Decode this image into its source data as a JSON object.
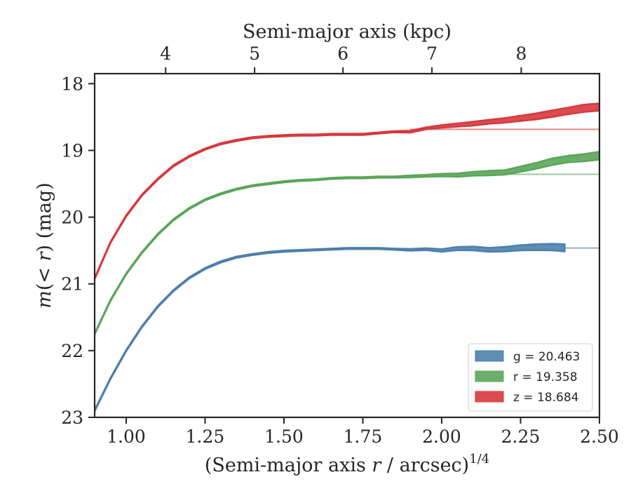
{
  "chart_data": {
    "type": "line",
    "title": "",
    "xlabel_main": "(Semi-major axis ",
    "xlabel_var": "r",
    "xlabel_tail": " / arcsec)",
    "xlabel_exp": "1/4",
    "ylabel_italic_m": "m",
    "ylabel_mid": "(< ",
    "ylabel_italic_r": "r",
    "ylabel_tail": ") (mag)",
    "top_xlabel": "Semi-major axis (kpc)",
    "xlim": [
      0.9,
      2.5
    ],
    "ylim": [
      23.0,
      17.85
    ],
    "y_inverted": true,
    "grid": false,
    "legend_position": "lower-right",
    "x_ticks": [
      {
        "value": 1.0,
        "label": "1.00"
      },
      {
        "value": 1.25,
        "label": "1.25"
      },
      {
        "value": 1.5,
        "label": "1.50"
      },
      {
        "value": 1.75,
        "label": "1.75"
      },
      {
        "value": 2.0,
        "label": "2.00"
      },
      {
        "value": 2.25,
        "label": "2.25"
      },
      {
        "value": 2.5,
        "label": "2.50"
      }
    ],
    "y_ticks": [
      {
        "value": 18,
        "label": "18"
      },
      {
        "value": 19,
        "label": "19"
      },
      {
        "value": 20,
        "label": "20"
      },
      {
        "value": 21,
        "label": "21"
      },
      {
        "value": 22,
        "label": "22"
      },
      {
        "value": 23,
        "label": "23"
      }
    ],
    "top_ticks": [
      {
        "value": 1.125,
        "label": "4"
      },
      {
        "value": 1.407,
        "label": "5"
      },
      {
        "value": 1.687,
        "label": "6"
      },
      {
        "value": 1.969,
        "label": "7"
      },
      {
        "value": 2.252,
        "label": "8"
      }
    ],
    "series": [
      {
        "band": "g",
        "legend": "g = 20.463",
        "color": "#4c7fad",
        "asymptote": 20.463,
        "asymptote_from": 2.39,
        "x": [
          0.9,
          0.95,
          1.0,
          1.05,
          1.1,
          1.15,
          1.2,
          1.25,
          1.3,
          1.35,
          1.4,
          1.45,
          1.5,
          1.55,
          1.6,
          1.65,
          1.7,
          1.75,
          1.8,
          1.85,
          1.9,
          1.95,
          2.0,
          2.05,
          2.1,
          2.15,
          2.2,
          2.25,
          2.3,
          2.35,
          2.39
        ],
        "y": [
          22.9,
          22.42,
          22.0,
          21.64,
          21.34,
          21.1,
          20.91,
          20.77,
          20.67,
          20.6,
          20.56,
          20.53,
          20.51,
          20.5,
          20.49,
          20.48,
          20.47,
          20.47,
          20.47,
          20.48,
          20.49,
          20.48,
          20.5,
          20.47,
          20.47,
          20.49,
          20.48,
          20.46,
          20.45,
          20.45,
          20.46
        ],
        "width": [
          0.02,
          0.02,
          0.02,
          0.02,
          0.02,
          0.02,
          0.02,
          0.02,
          0.02,
          0.02,
          0.02,
          0.02,
          0.02,
          0.02,
          0.02,
          0.02,
          0.02,
          0.02,
          0.02,
          0.02,
          0.03,
          0.03,
          0.04,
          0.05,
          0.06,
          0.06,
          0.07,
          0.08,
          0.09,
          0.1,
          0.11
        ]
      },
      {
        "band": "r",
        "legend": "r = 19.358",
        "color": "#5aa55a",
        "asymptote": 19.358,
        "asymptote_from": 2.2,
        "x": [
          0.9,
          0.95,
          1.0,
          1.05,
          1.1,
          1.15,
          1.2,
          1.25,
          1.3,
          1.35,
          1.4,
          1.45,
          1.5,
          1.55,
          1.6,
          1.65,
          1.7,
          1.75,
          1.8,
          1.85,
          1.9,
          1.95,
          2.0,
          2.05,
          2.1,
          2.15,
          2.2,
          2.25,
          2.3,
          2.35,
          2.4,
          2.45,
          2.5
        ],
        "y": [
          21.75,
          21.25,
          20.85,
          20.53,
          20.26,
          20.04,
          19.87,
          19.74,
          19.65,
          19.58,
          19.53,
          19.5,
          19.47,
          19.45,
          19.44,
          19.42,
          19.41,
          19.41,
          19.4,
          19.4,
          19.39,
          19.38,
          19.37,
          19.37,
          19.35,
          19.34,
          19.33,
          19.28,
          19.23,
          19.17,
          19.13,
          19.11,
          19.08
        ],
        "width": [
          0.02,
          0.02,
          0.02,
          0.02,
          0.02,
          0.02,
          0.02,
          0.02,
          0.02,
          0.02,
          0.02,
          0.02,
          0.02,
          0.02,
          0.02,
          0.02,
          0.02,
          0.02,
          0.02,
          0.02,
          0.03,
          0.03,
          0.04,
          0.05,
          0.06,
          0.07,
          0.07,
          0.08,
          0.09,
          0.1,
          0.1,
          0.11,
          0.12
        ]
      },
      {
        "band": "z",
        "legend": "z = 18.684",
        "color": "#d6383e",
        "asymptote": 18.684,
        "asymptote_from": 1.9,
        "x": [
          0.9,
          0.95,
          1.0,
          1.05,
          1.1,
          1.15,
          1.2,
          1.25,
          1.3,
          1.35,
          1.4,
          1.45,
          1.5,
          1.55,
          1.6,
          1.65,
          1.7,
          1.75,
          1.8,
          1.85,
          1.9,
          1.95,
          2.0,
          2.05,
          2.1,
          2.15,
          2.2,
          2.25,
          2.3,
          2.35,
          2.4,
          2.45,
          2.5
        ],
        "y": [
          20.92,
          20.38,
          19.98,
          19.67,
          19.43,
          19.23,
          19.09,
          18.98,
          18.9,
          18.85,
          18.81,
          18.79,
          18.78,
          18.77,
          18.77,
          18.76,
          18.76,
          18.76,
          18.74,
          18.72,
          18.72,
          18.67,
          18.64,
          18.62,
          18.6,
          18.57,
          18.55,
          18.52,
          18.49,
          18.45,
          18.41,
          18.37,
          18.35
        ],
        "width": [
          0.02,
          0.02,
          0.02,
          0.02,
          0.02,
          0.02,
          0.02,
          0.02,
          0.02,
          0.02,
          0.02,
          0.02,
          0.02,
          0.02,
          0.02,
          0.02,
          0.02,
          0.02,
          0.02,
          0.02,
          0.03,
          0.03,
          0.04,
          0.05,
          0.06,
          0.06,
          0.07,
          0.08,
          0.09,
          0.1,
          0.1,
          0.11,
          0.11
        ]
      }
    ]
  }
}
